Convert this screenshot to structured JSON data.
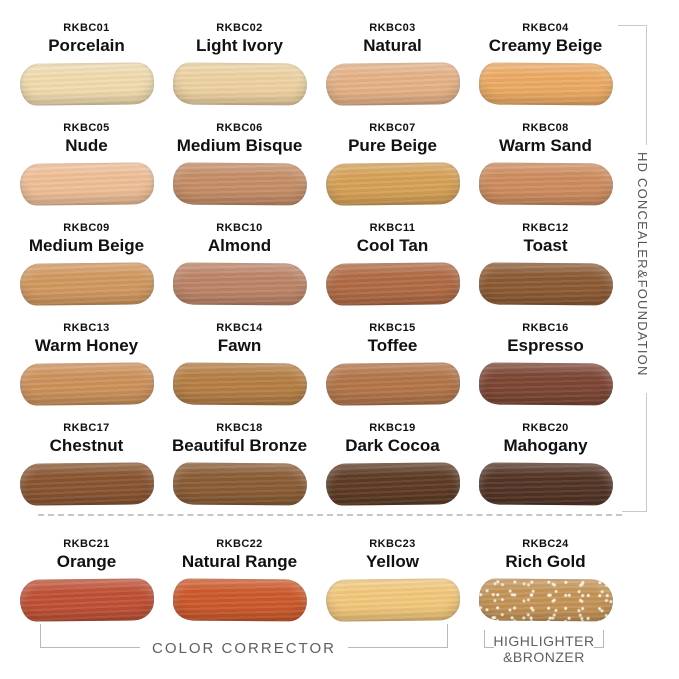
{
  "side_label": {
    "text": "HD CONCEALER&FOUNDATION"
  },
  "footer": {
    "color_corrector": "COLOR CORRECTOR",
    "highlighter_line1": "HIGHLIGHTER",
    "highlighter_line2": "&BRONZER"
  },
  "shades": [
    {
      "code": "RKBC01",
      "name": "Porcelain",
      "color": "#f1dcae",
      "group": "hd-concealer-foundation"
    },
    {
      "code": "RKBC02",
      "name": "Light Ivory",
      "color": "#eed2a2",
      "group": "hd-concealer-foundation"
    },
    {
      "code": "RKBC03",
      "name": "Natural",
      "color": "#e6b286",
      "group": "hd-concealer-foundation"
    },
    {
      "code": "RKBC04",
      "name": "Creamy Beige",
      "color": "#edab64",
      "group": "hd-concealer-foundation"
    },
    {
      "code": "RKBC05",
      "name": "Nude",
      "color": "#f0bf97",
      "group": "hd-concealer-foundation"
    },
    {
      "code": "RKBC06",
      "name": "Medium Bisque",
      "color": "#c68e68",
      "group": "hd-concealer-foundation"
    },
    {
      "code": "RKBC07",
      "name": "Pure Beige",
      "color": "#d7a257",
      "group": "hd-concealer-foundation"
    },
    {
      "code": "RKBC08",
      "name": "Warm Sand",
      "color": "#cf8d5f",
      "group": "hd-concealer-foundation"
    },
    {
      "code": "RKBC09",
      "name": "Medium Beige",
      "color": "#d39960",
      "group": "hd-concealer-foundation"
    },
    {
      "code": "RKBC10",
      "name": "Almond",
      "color": "#bd8568",
      "group": "hd-concealer-foundation"
    },
    {
      "code": "RKBC11",
      "name": "Cool Tan",
      "color": "#b16b44",
      "group": "hd-concealer-foundation"
    },
    {
      "code": "RKBC12",
      "name": "Toast",
      "color": "#8d5b34",
      "group": "hd-concealer-foundation"
    },
    {
      "code": "RKBC13",
      "name": "Warm Honey",
      "color": "#ce925b",
      "group": "hd-concealer-foundation"
    },
    {
      "code": "RKBC14",
      "name": "Fawn",
      "color": "#b67f45",
      "group": "hd-concealer-foundation"
    },
    {
      "code": "RKBC15",
      "name": "Toffee",
      "color": "#b4764a",
      "group": "hd-concealer-foundation"
    },
    {
      "code": "RKBC16",
      "name": "Espresso",
      "color": "#7d4634",
      "group": "hd-concealer-foundation"
    },
    {
      "code": "RKBC17",
      "name": "Chestnut",
      "color": "#8a5531",
      "group": "hd-concealer-foundation"
    },
    {
      "code": "RKBC18",
      "name": "Beautiful Bronze",
      "color": "#8b5d36",
      "group": "hd-concealer-foundation"
    },
    {
      "code": "RKBC19",
      "name": "Dark Cocoa",
      "color": "#5e3b25",
      "group": "hd-concealer-foundation"
    },
    {
      "code": "RKBC20",
      "name": "Mahogany",
      "color": "#543526",
      "group": "hd-concealer-foundation"
    },
    {
      "code": "RKBC21",
      "name": "Orange",
      "color": "#c05136",
      "group": "color-corrector"
    },
    {
      "code": "RKBC22",
      "name": "Natural Range",
      "color": "#cd5a2c",
      "group": "color-corrector"
    },
    {
      "code": "RKBC23",
      "name": "Yellow",
      "color": "#f3c87c",
      "group": "color-corrector"
    },
    {
      "code": "RKBC24",
      "name": "Rich Gold",
      "color": "#c49457",
      "group": "highlighter-bronzer",
      "texture": "shimmer"
    }
  ]
}
